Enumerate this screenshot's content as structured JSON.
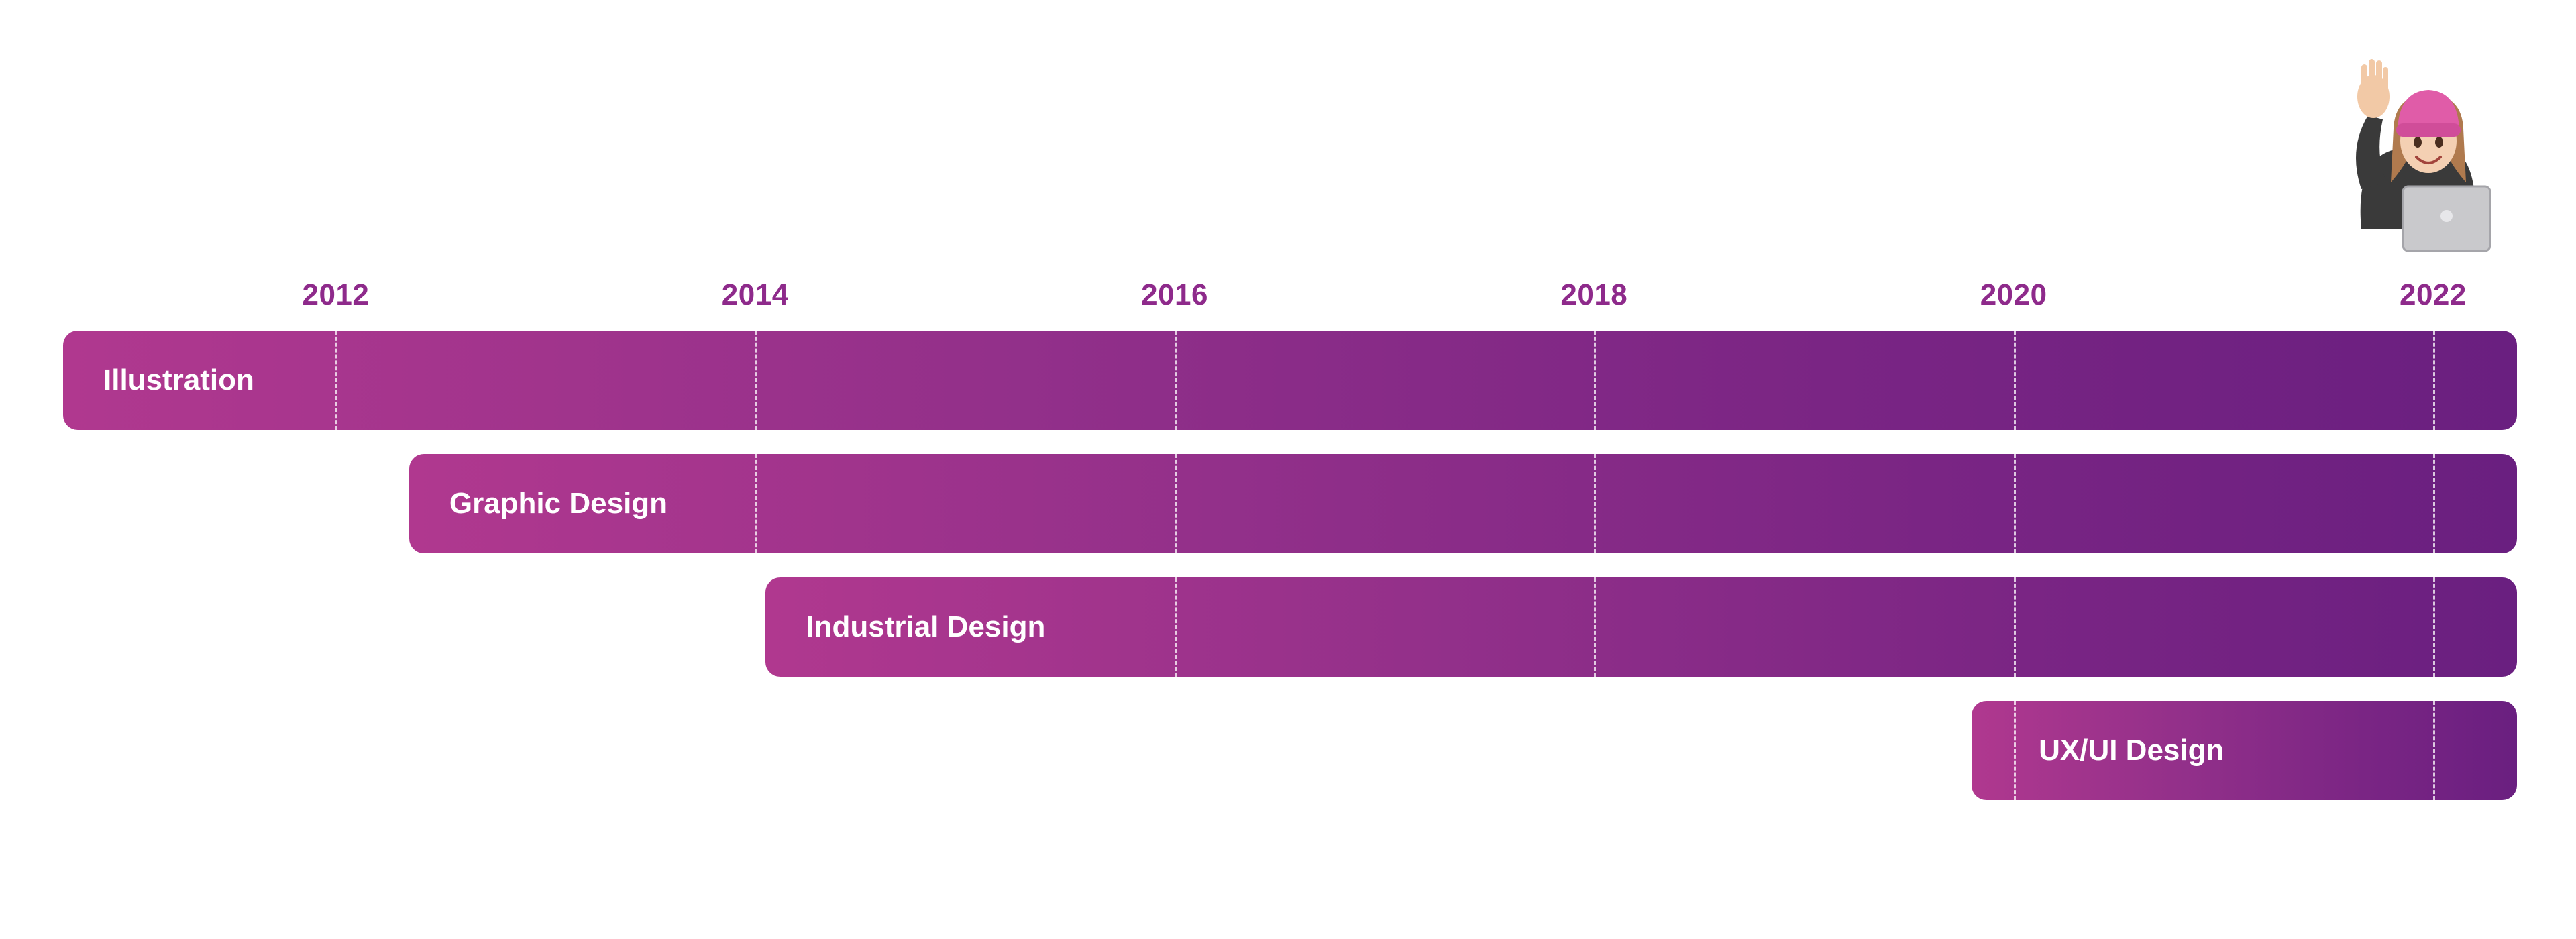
{
  "chart_data": {
    "type": "bar",
    "orientation": "horizontal-timeline",
    "x_ticks": [
      "2012",
      "2014",
      "2016",
      "2018",
      "2020",
      "2022"
    ],
    "x_range": [
      2010.7,
      2022.4
    ],
    "grid": true,
    "series": [
      {
        "name": "Illustration",
        "start": 2010.7,
        "end": 2022.4
      },
      {
        "name": "Graphic Design",
        "start": 2012.35,
        "end": 2022.4
      },
      {
        "name": "Industrial Design",
        "start": 2014.05,
        "end": 2022.4
      },
      {
        "name": "UX/UI Design",
        "start": 2019.8,
        "end": 2022.4
      }
    ],
    "colors": {
      "year_label": "#8e2a8b",
      "bar_gradient_start": "#b0388f",
      "bar_gradient_end": "#6a1f80"
    }
  },
  "decorations": {
    "avatar_icon": "waving-person-with-laptop-icon"
  }
}
